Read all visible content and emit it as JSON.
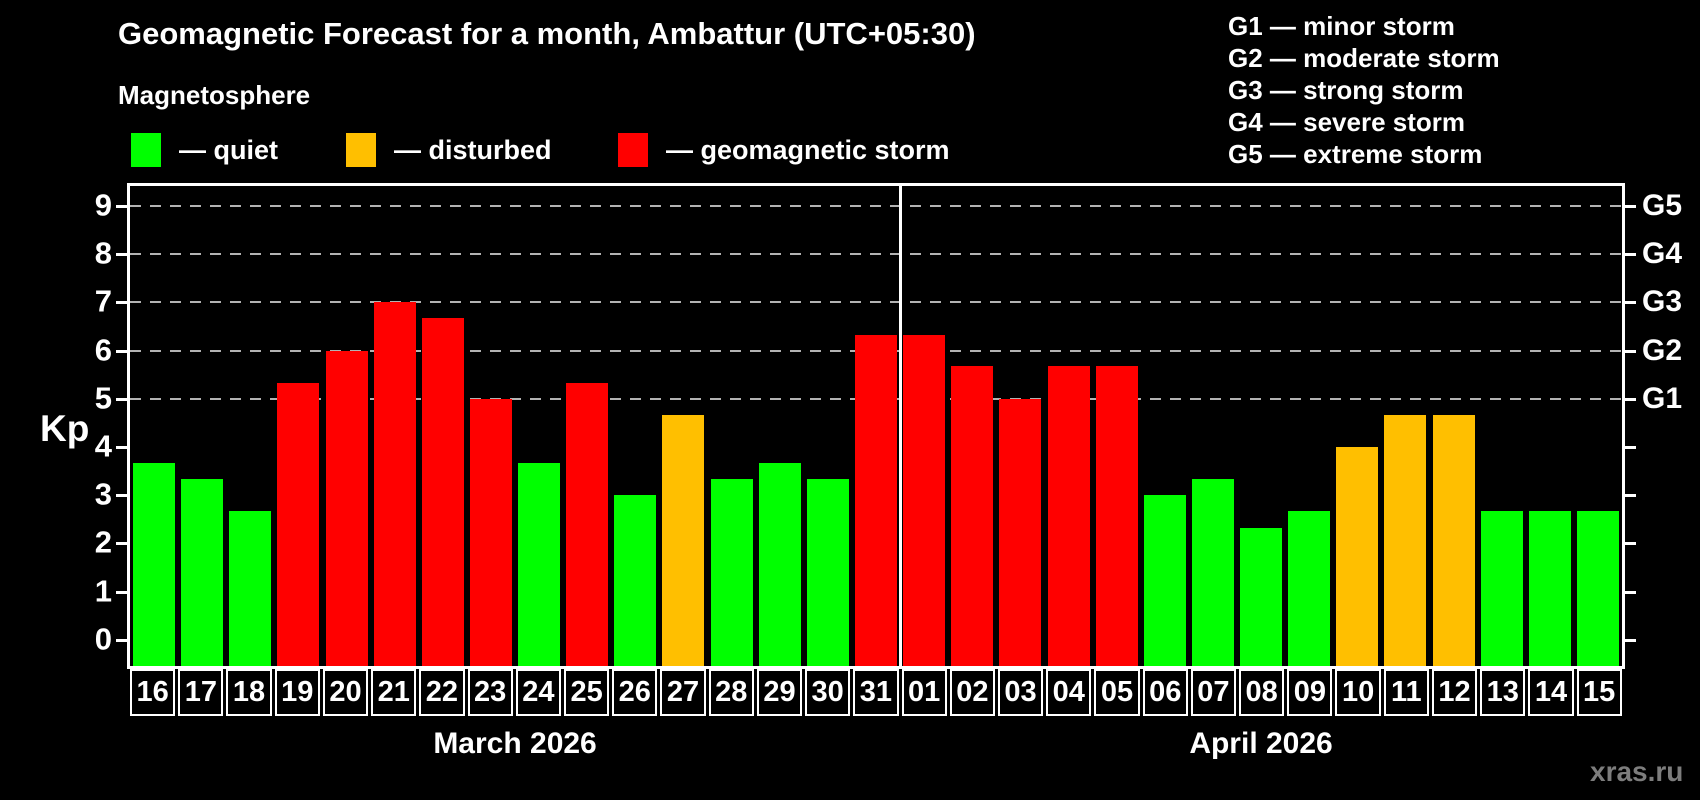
{
  "chart_data": {
    "type": "bar",
    "title": "Geomagnetic Forecast for a month, Ambattur (UTC+05:30)",
    "subtitle": "Magnetosphere",
    "ylabel": "Kp",
    "ylim": [
      -0.54,
      9.41
    ],
    "yticks": [
      0,
      1,
      2,
      3,
      4,
      5,
      6,
      7,
      8,
      9
    ],
    "gridlines_at": [
      5,
      6,
      7,
      8,
      9
    ],
    "legend_position": "top-left",
    "legend": [
      {
        "label": "— quiet",
        "status": "quiet"
      },
      {
        "label": "— disturbed",
        "status": "disturbed"
      },
      {
        "label": "— geomagnetic storm",
        "status": "storm"
      }
    ],
    "g_scale": [
      {
        "kp": 5,
        "label": "G1",
        "description": "G1 — minor storm"
      },
      {
        "kp": 6,
        "label": "G2",
        "description": "G2 — moderate storm"
      },
      {
        "kp": 7,
        "label": "G3",
        "description": "G3 — strong storm"
      },
      {
        "kp": 8,
        "label": "G4",
        "description": "G4 — severe storm"
      },
      {
        "kp": 9,
        "label": "G5",
        "description": "G5 — extreme storm"
      }
    ],
    "colors": {
      "quiet": "#00ff00",
      "disturbed": "#ffbf00",
      "storm": "#ff0000",
      "axis": "#ffffff",
      "grid": "#b3b3b3",
      "background": "#000000"
    },
    "months": [
      {
        "label": "March 2026",
        "days": 16
      },
      {
        "label": "April 2026",
        "days": 15
      }
    ],
    "bars": [
      {
        "day": "16",
        "kp": 3.67,
        "status": "quiet"
      },
      {
        "day": "17",
        "kp": 3.33,
        "status": "quiet"
      },
      {
        "day": "18",
        "kp": 2.67,
        "status": "quiet"
      },
      {
        "day": "19",
        "kp": 5.33,
        "status": "storm"
      },
      {
        "day": "20",
        "kp": 6.0,
        "status": "storm"
      },
      {
        "day": "21",
        "kp": 7.0,
        "status": "storm"
      },
      {
        "day": "22",
        "kp": 6.67,
        "status": "storm"
      },
      {
        "day": "23",
        "kp": 5.0,
        "status": "storm"
      },
      {
        "day": "24",
        "kp": 3.67,
        "status": "quiet"
      },
      {
        "day": "25",
        "kp": 5.33,
        "status": "storm"
      },
      {
        "day": "26",
        "kp": 3.0,
        "status": "quiet"
      },
      {
        "day": "27",
        "kp": 4.67,
        "status": "disturbed"
      },
      {
        "day": "28",
        "kp": 3.33,
        "status": "quiet"
      },
      {
        "day": "29",
        "kp": 3.67,
        "status": "quiet"
      },
      {
        "day": "30",
        "kp": 3.33,
        "status": "quiet"
      },
      {
        "day": "31",
        "kp": 6.33,
        "status": "storm"
      },
      {
        "day": "01",
        "kp": 6.33,
        "status": "storm"
      },
      {
        "day": "02",
        "kp": 5.67,
        "status": "storm"
      },
      {
        "day": "03",
        "kp": 5.0,
        "status": "storm"
      },
      {
        "day": "04",
        "kp": 5.67,
        "status": "storm"
      },
      {
        "day": "05",
        "kp": 5.67,
        "status": "storm"
      },
      {
        "day": "06",
        "kp": 3.0,
        "status": "quiet"
      },
      {
        "day": "07",
        "kp": 3.33,
        "status": "quiet"
      },
      {
        "day": "08",
        "kp": 2.33,
        "status": "quiet"
      },
      {
        "day": "09",
        "kp": 2.67,
        "status": "quiet"
      },
      {
        "day": "10",
        "kp": 4.0,
        "status": "disturbed"
      },
      {
        "day": "11",
        "kp": 4.67,
        "status": "disturbed"
      },
      {
        "day": "12",
        "kp": 4.67,
        "status": "disturbed"
      },
      {
        "day": "13",
        "kp": 2.67,
        "status": "quiet"
      },
      {
        "day": "14",
        "kp": 2.67,
        "status": "quiet"
      },
      {
        "day": "15",
        "kp": 2.67,
        "status": "quiet"
      }
    ]
  },
  "watermark": "xras.ru"
}
